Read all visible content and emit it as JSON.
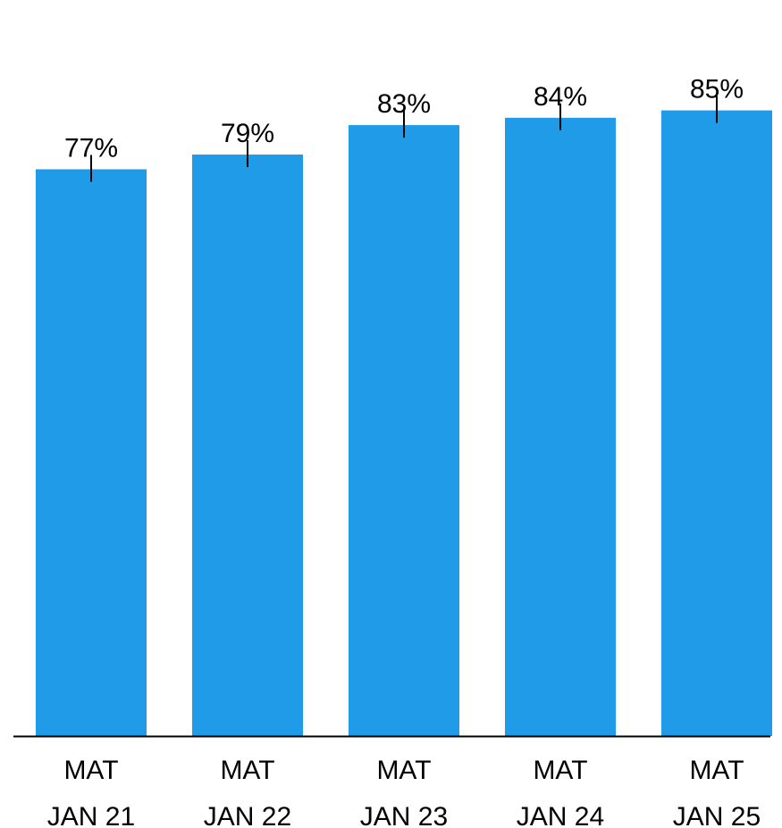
{
  "chart_data": {
    "type": "bar",
    "categories": [
      [
        "MAT",
        "JAN 21"
      ],
      [
        "MAT",
        "JAN 22"
      ],
      [
        "MAT",
        "JAN 23"
      ],
      [
        "MAT",
        "JAN 24"
      ],
      [
        "MAT",
        "JAN 25"
      ]
    ],
    "values": [
      77,
      79,
      83,
      84,
      85
    ],
    "data_labels": [
      "77%",
      "79%",
      "83%",
      "84%",
      "85%"
    ],
    "value_unit": "%",
    "ylim": [
      0,
      100
    ],
    "grid": false,
    "legend": "none",
    "error_marks": true,
    "title": "",
    "xlabel": "",
    "ylabel": "",
    "colors": {
      "bar": "#1f9be8",
      "axis": "#000000",
      "text": "#000000"
    }
  }
}
